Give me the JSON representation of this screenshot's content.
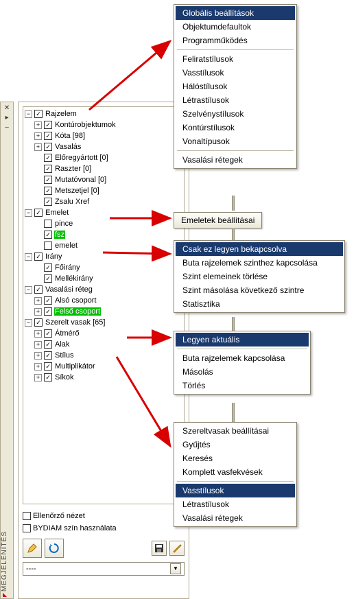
{
  "leftStrip": {
    "vertical_label": "MEGJELENÍTÉS"
  },
  "tree": {
    "nodes": [
      {
        "id": "rajzelem",
        "label": "Rajzelem",
        "depth": 0,
        "expander": "-",
        "checked": true
      },
      {
        "id": "kontur",
        "label": "Kontúrobjektumok",
        "depth": 1,
        "expander": "+",
        "checked": true
      },
      {
        "id": "kota",
        "label": "Kóta [98]",
        "depth": 1,
        "expander": "+",
        "checked": true
      },
      {
        "id": "vasalas",
        "label": "Vasalás",
        "depth": 1,
        "expander": "+",
        "checked": true
      },
      {
        "id": "elore",
        "label": "Előregyártott [0]",
        "depth": 1,
        "expander": "",
        "checked": true
      },
      {
        "id": "raszter",
        "label": "Raszter [0]",
        "depth": 1,
        "expander": "",
        "checked": true
      },
      {
        "id": "mutato",
        "label": "Mutatóvonal [0]",
        "depth": 1,
        "expander": "",
        "checked": true
      },
      {
        "id": "metszet",
        "label": "Metszetjel [0]",
        "depth": 1,
        "expander": "",
        "checked": true
      },
      {
        "id": "zsalu",
        "label": "Zsalu Xref",
        "depth": 1,
        "expander": "",
        "checked": true
      },
      {
        "id": "emelet",
        "label": "Emelet",
        "depth": 0,
        "expander": "-",
        "checked": true
      },
      {
        "id": "pince",
        "label": "pince",
        "depth": 1,
        "expander": "",
        "checked": false
      },
      {
        "id": "fsz",
        "label": "fsz",
        "depth": 1,
        "expander": "",
        "checked": true,
        "hl": "green"
      },
      {
        "id": "emelet1",
        "label": "emelet",
        "depth": 1,
        "expander": "",
        "checked": false
      },
      {
        "id": "irany",
        "label": "Irány",
        "depth": 0,
        "expander": "-",
        "checked": true
      },
      {
        "id": "foirany",
        "label": "Főirány",
        "depth": 1,
        "expander": "",
        "checked": true
      },
      {
        "id": "mellek",
        "label": "Mellékirány",
        "depth": 1,
        "expander": "",
        "checked": true
      },
      {
        "id": "vasreteg",
        "label": "Vasalási réteg",
        "depth": 0,
        "expander": "-",
        "checked": true
      },
      {
        "id": "also",
        "label": "Alsó csoport",
        "depth": 1,
        "expander": "+",
        "checked": true
      },
      {
        "id": "felso",
        "label": "Felső csoport",
        "depth": 1,
        "expander": "+",
        "checked": true,
        "hl": "green"
      },
      {
        "id": "szerelt",
        "label": "Szerelt vasak [65]",
        "depth": 0,
        "expander": "-",
        "checked": true
      },
      {
        "id": "atmero",
        "label": "Átmérő",
        "depth": 1,
        "expander": "+",
        "checked": true
      },
      {
        "id": "alak",
        "label": "Alak",
        "depth": 1,
        "expander": "+",
        "checked": true
      },
      {
        "id": "stilus",
        "label": "Stílus",
        "depth": 1,
        "expander": "+",
        "checked": true
      },
      {
        "id": "multi",
        "label": "Multiplikátor",
        "depth": 1,
        "expander": "+",
        "checked": true
      },
      {
        "id": "sikok",
        "label": "Síkok",
        "depth": 1,
        "expander": "+",
        "checked": true
      }
    ]
  },
  "bottom": {
    "chk1_label": "Ellenőrző nézet",
    "chk2_label": "BYDIAM szín használata",
    "dropdown_value": "----"
  },
  "menu1": {
    "items": [
      {
        "label": "Globális beállítások",
        "selected": true
      },
      {
        "label": "Objektumdefaultok"
      },
      {
        "label": "Programműködés"
      },
      {
        "sep": true
      },
      {
        "label": "Feliratstílusok"
      },
      {
        "label": "Vasstílusok"
      },
      {
        "label": "Hálóstílusok"
      },
      {
        "label": "Létrastílusok"
      },
      {
        "label": "Szelvénystílusok"
      },
      {
        "label": "Kontúrstílusok"
      },
      {
        "label": "Vonaltípusok"
      },
      {
        "sep": true
      },
      {
        "label": "Vasalási rétegek"
      }
    ]
  },
  "button1": {
    "label": "Emeletek beállításai"
  },
  "menu2": {
    "items": [
      {
        "label": "Csak ez legyen bekapcsolva",
        "selected": true
      },
      {
        "label": "Buta rajzelemek szinthez kapcsolása"
      },
      {
        "label": "Szint elemeinek törlése"
      },
      {
        "label": "Szint másolása következő szintre"
      },
      {
        "label": "Statisztika"
      }
    ]
  },
  "menu3": {
    "items": [
      {
        "label": "Legyen aktuális",
        "selected": true
      },
      {
        "sep": true
      },
      {
        "label": "Buta rajzelemek kapcsolása"
      },
      {
        "label": "Másolás"
      },
      {
        "label": "Törlés"
      }
    ]
  },
  "menu4": {
    "items": [
      {
        "label": "Szereltvasak beállításai"
      },
      {
        "label": "Gyűjtés"
      },
      {
        "label": "Keresés"
      },
      {
        "label": "Komplett vasfekvések"
      },
      {
        "sep": true
      },
      {
        "label": "Vasstílusok",
        "selected": true
      },
      {
        "label": "Létrastílusok"
      },
      {
        "label": "Vasalási rétegek"
      }
    ]
  },
  "arrows": {
    "color": "#d80000"
  }
}
